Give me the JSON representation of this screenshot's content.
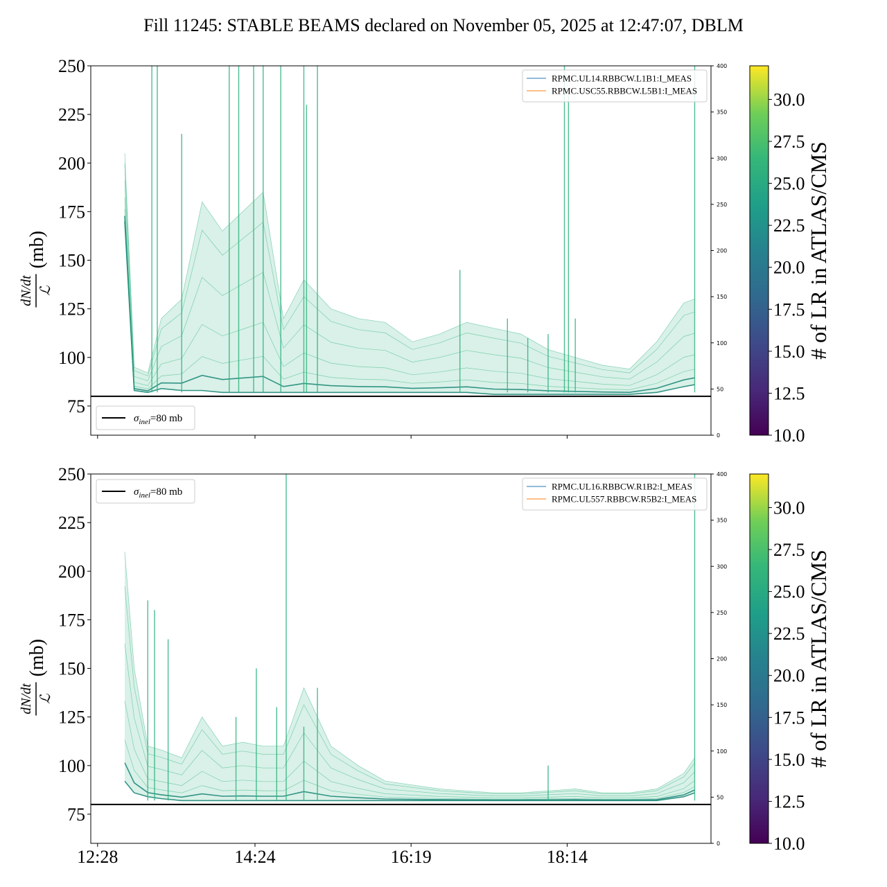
{
  "title": "Fill 11245: STABLE BEAMS declared on November 05, 2025 at 12:47:07, DBLM",
  "chart_data": [
    {
      "type": "line",
      "panel": "top",
      "ylabel_num": "dN/dt",
      "ylabel_den": "ℒ",
      "ylabel_unit": "(mb)",
      "ylim": [
        60,
        250
      ],
      "yticks": [
        "75",
        "100",
        "125",
        "150",
        "175",
        "200",
        "225",
        "250"
      ],
      "yticks_values": [
        75,
        100,
        125,
        150,
        175,
        200,
        225,
        250
      ],
      "y2lim": [
        0,
        400
      ],
      "y2ticks": [
        "0",
        "50",
        "100",
        "150",
        "200",
        "250",
        "300",
        "350",
        "400"
      ],
      "xticks": [
        "12:28",
        "14:24",
        "16:19",
        "18:14"
      ],
      "hline_value": 80,
      "hline_legend": "σinel=80 mb",
      "hline_legend_sym": "σ",
      "hline_legend_sub": "inel",
      "hline_legend_rest": "=80 mb",
      "legend_position": "top-right",
      "hline_legend_position": "lower-left",
      "series": [
        {
          "name": "RPMC.UL14.RBBCW.L1B1:I_MEAS",
          "color": "#1f77b4"
        },
        {
          "name": "RPMC.USC55.RBBCW.L5B1:I_MEAS",
          "color": "#ff7f0e"
        }
      ],
      "envelope_times": [
        "12:48",
        "12:55",
        "13:05",
        "13:15",
        "13:30",
        "13:45",
        "14:00",
        "14:15",
        "14:30",
        "14:45",
        "15:00",
        "15:20",
        "15:40",
        "16:00",
        "16:20",
        "16:40",
        "17:00",
        "17:20",
        "17:40",
        "18:00",
        "18:20",
        "18:40",
        "19:00",
        "19:20",
        "19:40",
        "19:48"
      ],
      "envelope_upper": [
        205,
        95,
        92,
        120,
        130,
        180,
        165,
        175,
        185,
        120,
        140,
        125,
        120,
        118,
        108,
        112,
        118,
        115,
        112,
        104,
        100,
        96,
        94,
        108,
        128,
        130
      ],
      "envelope_lower": [
        170,
        83,
        82,
        84,
        83,
        83,
        82,
        82,
        82,
        82,
        82,
        82,
        82,
        82,
        82,
        82,
        82,
        81,
        81,
        81,
        81,
        81,
        81,
        82,
        85,
        86
      ],
      "spike_times": [
        "13:08",
        "13:12",
        "13:30",
        "14:05",
        "14:12",
        "14:23",
        "14:30",
        "14:43",
        "15:00",
        "15:02",
        "15:10",
        "16:55",
        "17:30",
        "17:45",
        "18:00",
        "18:12",
        "18:15",
        "18:20",
        "19:48"
      ],
      "spike_values": [
        250,
        250,
        215,
        250,
        250,
        250,
        250,
        250,
        250,
        230,
        250,
        145,
        120,
        110,
        112,
        250,
        235,
        120,
        250
      ],
      "colorbar": {
        "label": "# of LR in ATLAS/CMS",
        "range": [
          10,
          32
        ],
        "ticks": [
          "10.0",
          "12.5",
          "15.0",
          "17.5",
          "20.0",
          "22.5",
          "25.0",
          "27.5",
          "30.0"
        ],
        "ticks_values": [
          10,
          12.5,
          15,
          17.5,
          20,
          22.5,
          25,
          27.5,
          30
        ],
        "colormap": "viridis",
        "trace_color": "#2db27d"
      }
    },
    {
      "type": "line",
      "panel": "bottom",
      "ylabel_num": "dN/dt",
      "ylabel_den": "ℒ",
      "ylabel_unit": "(mb)",
      "ylim": [
        60,
        250
      ],
      "yticks": [
        "75",
        "100",
        "125",
        "150",
        "175",
        "200",
        "225",
        "250"
      ],
      "yticks_values": [
        75,
        100,
        125,
        150,
        175,
        200,
        225,
        250
      ],
      "y2lim": [
        0,
        400
      ],
      "y2ticks": [
        "0",
        "50",
        "100",
        "150",
        "200",
        "250",
        "300",
        "350",
        "400"
      ],
      "xticks": [
        "12:28",
        "14:24",
        "16:19",
        "18:14"
      ],
      "hline_value": 80,
      "hline_legend": "σinel=80 mb",
      "hline_legend_sym": "σ",
      "hline_legend_sub": "inel",
      "hline_legend_rest": "=80 mb",
      "legend_position": "top-right",
      "hline_legend_position": "upper-left",
      "series": [
        {
          "name": "RPMC.UL16.RBBCW.R1B2:I_MEAS",
          "color": "#1f77b4"
        },
        {
          "name": "RPMC.UL557.RBBCW.R5B2:I_MEAS",
          "color": "#ff7f0e"
        }
      ],
      "envelope_times": [
        "12:48",
        "12:55",
        "13:05",
        "13:15",
        "13:30",
        "13:45",
        "14:00",
        "14:15",
        "14:30",
        "14:45",
        "15:00",
        "15:20",
        "15:40",
        "16:00",
        "16:20",
        "16:40",
        "17:00",
        "17:20",
        "17:40",
        "18:00",
        "18:20",
        "18:40",
        "19:00",
        "19:20",
        "19:40",
        "19:48"
      ],
      "envelope_upper": [
        210,
        150,
        110,
        108,
        104,
        125,
        110,
        112,
        110,
        110,
        140,
        110,
        100,
        92,
        90,
        88,
        87,
        86,
        86,
        87,
        88,
        86,
        86,
        88,
        96,
        104
      ],
      "envelope_lower": [
        92,
        86,
        84,
        83,
        82,
        82,
        82,
        82,
        82,
        82,
        82,
        82,
        82,
        82,
        82,
        82,
        82,
        82,
        82,
        82,
        82,
        82,
        82,
        82,
        84,
        86
      ],
      "spike_times": [
        "13:05",
        "13:10",
        "13:20",
        "14:10",
        "14:25",
        "14:40",
        "14:47",
        "15:00",
        "15:10",
        "18:00",
        "19:48"
      ],
      "spike_values": [
        185,
        180,
        165,
        125,
        150,
        130,
        250,
        120,
        140,
        100,
        250
      ],
      "colorbar": {
        "label": "# of LR in ATLAS/CMS",
        "range": [
          10,
          32
        ],
        "ticks": [
          "10.0",
          "12.5",
          "15.0",
          "17.5",
          "20.0",
          "22.5",
          "25.0",
          "27.5",
          "30.0"
        ],
        "ticks_values": [
          10,
          12.5,
          15,
          17.5,
          20,
          22.5,
          25,
          27.5,
          30
        ],
        "colormap": "viridis",
        "trace_color": "#2db27d"
      }
    }
  ]
}
